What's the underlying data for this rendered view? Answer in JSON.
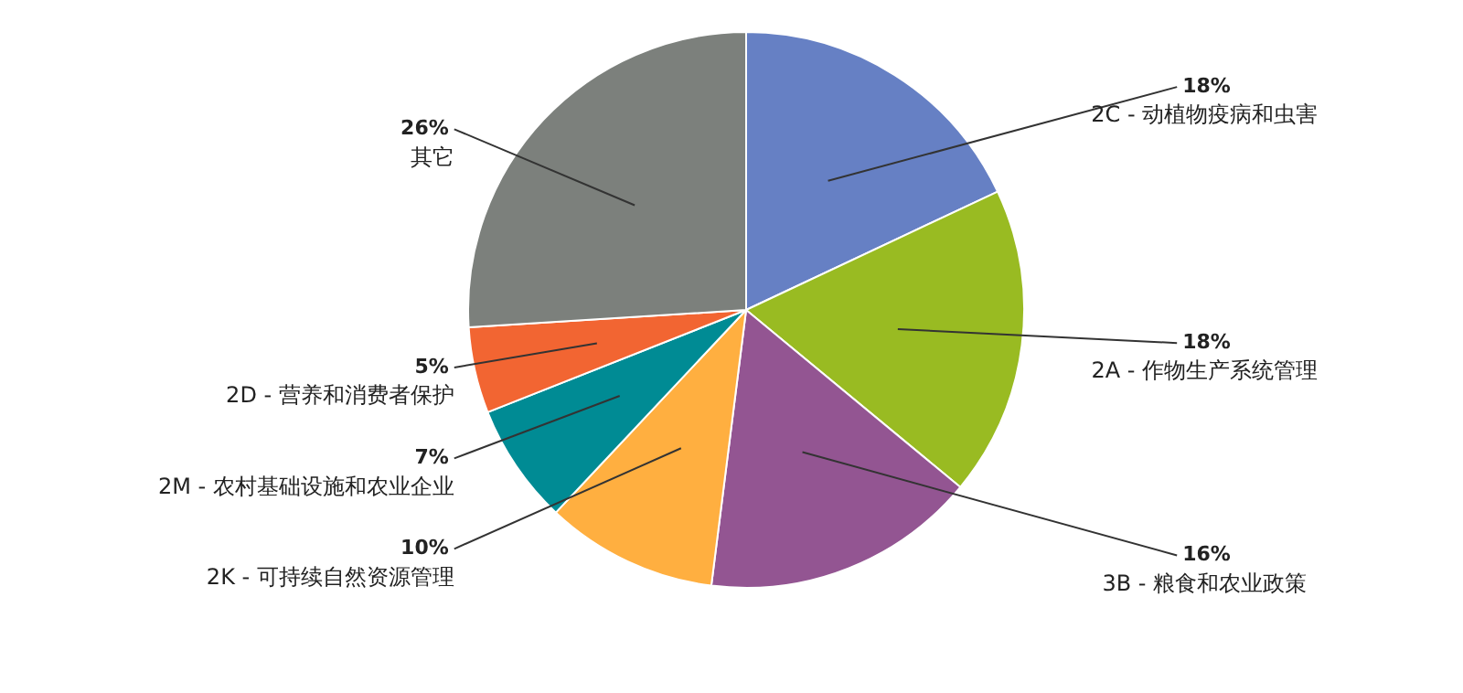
{
  "chart_data": {
    "type": "pie",
    "categories": [
      "2C - 动植物疫病和虫害",
      "2A - 作物生产系统管理",
      "3B - 粮食和农业政策",
      "2K - 可持续自然资源管理",
      "2M - 农村基础设施和农业企业",
      "2D - 营养和消费者保护",
      "其它"
    ],
    "values": [
      18,
      18,
      16,
      10,
      7,
      5,
      26
    ],
    "colors": [
      "#6680c4",
      "#99bb22",
      "#935592",
      "#ffaf40",
      "#008b94",
      "#f26532",
      "#7c807c"
    ],
    "value_labels": [
      "18%",
      "18%",
      "16%",
      "10%",
      "7%",
      "5%",
      "26%"
    ],
    "legend": false
  }
}
